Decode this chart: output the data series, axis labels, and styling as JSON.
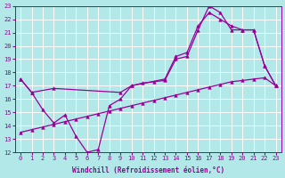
{
  "xlabel": "Windchill (Refroidissement éolien,°C)",
  "background_color": "#b3e8e8",
  "grid_color": "#ffffff",
  "line_color": "#990099",
  "xlim": [
    -0.5,
    23.5
  ],
  "ylim": [
    12,
    23
  ],
  "xticks": [
    0,
    1,
    2,
    3,
    4,
    5,
    6,
    7,
    8,
    9,
    10,
    11,
    12,
    13,
    14,
    15,
    16,
    17,
    18,
    19,
    20,
    21,
    22,
    23
  ],
  "yticks": [
    12,
    13,
    14,
    15,
    16,
    17,
    18,
    19,
    20,
    21,
    22,
    23
  ],
  "line1_x": [
    0,
    1,
    2,
    3,
    4,
    5,
    6,
    7,
    8,
    9,
    10,
    11,
    12,
    13,
    14,
    15,
    16,
    17,
    18,
    19,
    20,
    21,
    22,
    23
  ],
  "line1_y": [
    17.5,
    16.5,
    15.2,
    14.2,
    14.8,
    13.2,
    12.0,
    12.2,
    15.5,
    16.0,
    17.0,
    17.2,
    17.3,
    17.4,
    19.0,
    19.2,
    21.2,
    23.0,
    22.5,
    21.2,
    21.2,
    21.2,
    18.5,
    17.0
  ],
  "line2_x": [
    0,
    1,
    2,
    3,
    4,
    5,
    6,
    7,
    8,
    9,
    10,
    11,
    12,
    13,
    14,
    15,
    16,
    17,
    18,
    19,
    20,
    21,
    22,
    23
  ],
  "line2_y": [
    13.5,
    13.7,
    13.9,
    14.1,
    14.3,
    14.5,
    14.7,
    14.9,
    15.1,
    15.3,
    15.5,
    15.7,
    15.9,
    16.1,
    16.3,
    16.5,
    16.7,
    16.9,
    17.1,
    17.3,
    17.4,
    17.5,
    17.6,
    17.0
  ],
  "line3_x": [
    0,
    1,
    3,
    9,
    10,
    13,
    14,
    15,
    16,
    17,
    18,
    19,
    20,
    21,
    22,
    23
  ],
  "line3_y": [
    17.5,
    16.5,
    16.8,
    16.5,
    17.0,
    17.5,
    19.2,
    19.5,
    21.5,
    22.5,
    22.0,
    21.5,
    21.2,
    21.2,
    18.5,
    17.0
  ],
  "marker": "^",
  "markersize": 2.5,
  "linewidth": 0.9,
  "tick_fontsize": 5,
  "label_fontsize": 5.5
}
